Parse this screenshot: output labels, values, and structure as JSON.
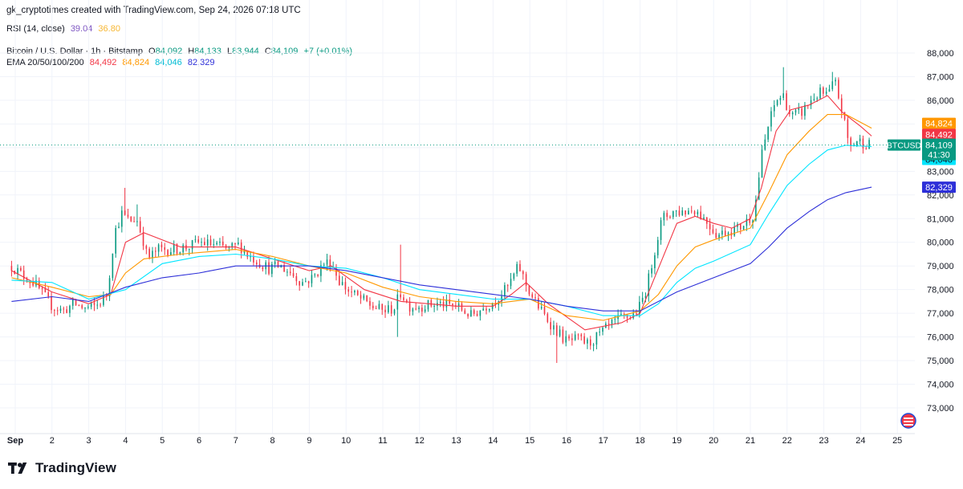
{
  "header": {
    "credit": "gk_cryptotimes created with TradingView.com, Sep 24, 2026 07:18 UTC",
    "rsi": {
      "label": "RSI (14, close)",
      "value1": "39.04",
      "value2": "36.80",
      "color1": "#7e57c2",
      "color2": "#f7b733"
    },
    "symbol": {
      "name": "Bitcoin / U.S. Dollar · 1h · Bitstamp",
      "o_label": "O",
      "o": "84,092",
      "h_label": "H",
      "h": "84,133",
      "l_label": "L",
      "l": "83,944",
      "c_label": "C",
      "c": "84,109",
      "change": "+7 (+0.01%)"
    },
    "ema": {
      "label": "EMA 20/50/100/200",
      "values": [
        "84,492",
        "84,824",
        "84,046",
        "82,329"
      ],
      "colors": [
        "#f23645",
        "#ff9800",
        "#00e5ff",
        "#2d2fd8"
      ]
    }
  },
  "branding": {
    "logo_text": "TradingView",
    "logo_icon": "tradingview-logo-icon"
  },
  "chart_data": {
    "type": "candlestick",
    "interval": "1h",
    "ylim": [
      72400,
      88300
    ],
    "y_ticks": [
      "73,000",
      "74,000",
      "75,000",
      "76,000",
      "77,000",
      "78,000",
      "79,000",
      "80,000",
      "81,000",
      "82,000",
      "83,000",
      "84,000",
      "85,000",
      "86,000",
      "87,000",
      "88,000"
    ],
    "x_ticks": [
      {
        "label": "Sep",
        "day": 1
      },
      {
        "label": "2",
        "day": 2
      },
      {
        "label": "3",
        "day": 3
      },
      {
        "label": "4",
        "day": 4
      },
      {
        "label": "5",
        "day": 5
      },
      {
        "label": "6",
        "day": 6
      },
      {
        "label": "7",
        "day": 7
      },
      {
        "label": "8",
        "day": 8
      },
      {
        "label": "9",
        "day": 9
      },
      {
        "label": "10",
        "day": 10
      },
      {
        "label": "11",
        "day": 11
      },
      {
        "label": "12",
        "day": 12
      },
      {
        "label": "13",
        "day": 13
      },
      {
        "label": "14",
        "day": 14
      },
      {
        "label": "15",
        "day": 15
      },
      {
        "label": "16",
        "day": 16
      },
      {
        "label": "17",
        "day": 17
      },
      {
        "label": "18",
        "day": 18
      },
      {
        "label": "19",
        "day": 19
      },
      {
        "label": "20",
        "day": 20
      },
      {
        "label": "21",
        "day": 21
      },
      {
        "label": "22",
        "day": 22
      },
      {
        "label": "23",
        "day": 23
      },
      {
        "label": "24",
        "day": 24
      },
      {
        "label": "25",
        "day": 25
      }
    ],
    "close_path": [
      [
        0.9,
        79000
      ],
      [
        1.2,
        78600
      ],
      [
        1.5,
        78300
      ],
      [
        1.8,
        77700
      ],
      [
        2.0,
        77300
      ],
      [
        2.3,
        77100
      ],
      [
        2.6,
        77400
      ],
      [
        2.9,
        77200
      ],
      [
        3.2,
        77300
      ],
      [
        3.5,
        77800
      ],
      [
        3.7,
        80400
      ],
      [
        3.9,
        81200
      ],
      [
        4.1,
        80900
      ],
      [
        4.3,
        81000
      ],
      [
        4.5,
        80000
      ],
      [
        4.6,
        79300
      ],
      [
        4.9,
        79700
      ],
      [
        5.3,
        79700
      ],
      [
        5.7,
        79800
      ],
      [
        6.0,
        80000
      ],
      [
        6.4,
        79900
      ],
      [
        6.8,
        79700
      ],
      [
        7.1,
        79900
      ],
      [
        7.3,
        79500
      ],
      [
        7.6,
        79200
      ],
      [
        7.9,
        78900
      ],
      [
        8.2,
        79000
      ],
      [
        8.5,
        78700
      ],
      [
        8.8,
        78300
      ],
      [
        9.1,
        78500
      ],
      [
        9.4,
        79100
      ],
      [
        9.6,
        79200
      ],
      [
        9.8,
        78400
      ],
      [
        10.1,
        77900
      ],
      [
        10.4,
        77600
      ],
      [
        10.7,
        77300
      ],
      [
        11.0,
        77100
      ],
      [
        11.3,
        77200
      ],
      [
        11.5,
        77900
      ],
      [
        11.7,
        77300
      ],
      [
        12.0,
        77300
      ],
      [
        12.5,
        77400
      ],
      [
        13.0,
        77300
      ],
      [
        13.4,
        76900
      ],
      [
        13.8,
        77300
      ],
      [
        14.1,
        77600
      ],
      [
        14.4,
        78100
      ],
      [
        14.7,
        79000
      ],
      [
        14.9,
        78200
      ],
      [
        15.1,
        77600
      ],
      [
        15.4,
        76900
      ],
      [
        15.7,
        76300
      ],
      [
        16.0,
        75800
      ],
      [
        16.3,
        75900
      ],
      [
        16.6,
        75700
      ],
      [
        16.9,
        76100
      ],
      [
        17.2,
        76500
      ],
      [
        17.5,
        76800
      ],
      [
        17.8,
        76900
      ],
      [
        18.0,
        77300
      ],
      [
        18.2,
        78200
      ],
      [
        18.4,
        79700
      ],
      [
        18.6,
        81000
      ],
      [
        18.9,
        81300
      ],
      [
        19.2,
        81300
      ],
      [
        19.5,
        81400
      ],
      [
        19.8,
        80900
      ],
      [
        20.1,
        80300
      ],
      [
        20.4,
        80500
      ],
      [
        20.7,
        80600
      ],
      [
        20.9,
        80900
      ],
      [
        21.1,
        81200
      ],
      [
        21.3,
        83600
      ],
      [
        21.5,
        85000
      ],
      [
        21.7,
        86000
      ],
      [
        21.9,
        86200
      ],
      [
        22.1,
        85300
      ],
      [
        22.4,
        85500
      ],
      [
        22.7,
        86100
      ],
      [
        22.9,
        86300
      ],
      [
        23.1,
        86200
      ],
      [
        23.3,
        86800
      ],
      [
        23.5,
        85500
      ],
      [
        23.7,
        84000
      ],
      [
        23.9,
        84300
      ],
      [
        24.1,
        84200
      ],
      [
        24.3,
        84109
      ]
    ],
    "spikes": [
      {
        "day": 3.95,
        "value": 82300
      },
      {
        "day": 11.45,
        "value": 79900
      },
      {
        "day": 11.4,
        "value": 76000
      },
      {
        "day": 15.75,
        "value": 74900
      },
      {
        "day": 21.9,
        "value": 87400
      },
      {
        "day": 23.2,
        "value": 87200
      },
      {
        "day": 4.3,
        "value": 81600
      }
    ],
    "series": [
      {
        "name": "EMA 20",
        "color": "#f23645",
        "points": [
          [
            0.9,
            78800
          ],
          [
            2.0,
            77900
          ],
          [
            3.0,
            77400
          ],
          [
            3.6,
            77800
          ],
          [
            4.0,
            80000
          ],
          [
            4.5,
            80400
          ],
          [
            5.5,
            79800
          ],
          [
            7.0,
            79800
          ],
          [
            8.0,
            79300
          ],
          [
            9.0,
            78800
          ],
          [
            9.6,
            79000
          ],
          [
            10.5,
            78000
          ],
          [
            11.5,
            77500
          ],
          [
            13.0,
            77300
          ],
          [
            14.0,
            77300
          ],
          [
            14.5,
            77800
          ],
          [
            14.9,
            78300
          ],
          [
            15.5,
            77400
          ],
          [
            16.5,
            76300
          ],
          [
            17.5,
            76600
          ],
          [
            18.0,
            77000
          ],
          [
            18.5,
            78900
          ],
          [
            19.0,
            80800
          ],
          [
            19.5,
            81100
          ],
          [
            20.0,
            80800
          ],
          [
            20.5,
            80600
          ],
          [
            21.0,
            81000
          ],
          [
            21.3,
            82300
          ],
          [
            21.7,
            84700
          ],
          [
            22.1,
            85600
          ],
          [
            22.6,
            85800
          ],
          [
            23.1,
            86200
          ],
          [
            23.5,
            85500
          ],
          [
            24.0,
            84900
          ],
          [
            24.3,
            84492
          ]
        ]
      },
      {
        "name": "EMA 50",
        "color": "#ff9800",
        "points": [
          [
            0.9,
            78500
          ],
          [
            2.0,
            78100
          ],
          [
            3.0,
            77700
          ],
          [
            3.6,
            77800
          ],
          [
            4.0,
            78700
          ],
          [
            4.5,
            79300
          ],
          [
            5.5,
            79500
          ],
          [
            7.0,
            79700
          ],
          [
            8.0,
            79400
          ],
          [
            9.0,
            79000
          ],
          [
            10.0,
            78700
          ],
          [
            11.0,
            78100
          ],
          [
            12.0,
            77700
          ],
          [
            13.0,
            77500
          ],
          [
            14.0,
            77400
          ],
          [
            15.0,
            77600
          ],
          [
            16.0,
            76900
          ],
          [
            17.0,
            76700
          ],
          [
            18.0,
            77100
          ],
          [
            18.5,
            77800
          ],
          [
            19.0,
            79000
          ],
          [
            19.5,
            79800
          ],
          [
            20.0,
            80100
          ],
          [
            21.0,
            80600
          ],
          [
            21.5,
            82100
          ],
          [
            22.0,
            83700
          ],
          [
            22.6,
            84700
          ],
          [
            23.1,
            85400
          ],
          [
            23.6,
            85400
          ],
          [
            24.3,
            84824
          ]
        ]
      },
      {
        "name": "EMA 100",
        "color": "#00e5ff",
        "points": [
          [
            0.9,
            78400
          ],
          [
            2.0,
            78300
          ],
          [
            3.0,
            77600
          ],
          [
            4.0,
            78000
          ],
          [
            5.0,
            79100
          ],
          [
            6.0,
            79400
          ],
          [
            7.0,
            79500
          ],
          [
            8.0,
            79300
          ],
          [
            9.0,
            79000
          ],
          [
            10.0,
            78900
          ],
          [
            11.0,
            78500
          ],
          [
            12.0,
            78000
          ],
          [
            13.0,
            77800
          ],
          [
            14.0,
            77600
          ],
          [
            15.0,
            77600
          ],
          [
            16.0,
            77300
          ],
          [
            17.0,
            76900
          ],
          [
            18.0,
            76900
          ],
          [
            18.5,
            77400
          ],
          [
            19.0,
            78300
          ],
          [
            19.5,
            78900
          ],
          [
            20.0,
            79200
          ],
          [
            21.0,
            79900
          ],
          [
            21.5,
            81200
          ],
          [
            22.0,
            82400
          ],
          [
            22.6,
            83300
          ],
          [
            23.1,
            83900
          ],
          [
            23.6,
            84100
          ],
          [
            24.3,
            84046
          ]
        ]
      },
      {
        "name": "EMA 200",
        "color": "#2d2fd8",
        "points": [
          [
            0.9,
            77500
          ],
          [
            2.0,
            77700
          ],
          [
            3.0,
            77500
          ],
          [
            4.0,
            78100
          ],
          [
            5.0,
            78500
          ],
          [
            6.0,
            78700
          ],
          [
            7.0,
            79000
          ],
          [
            8.0,
            79000
          ],
          [
            9.0,
            79000
          ],
          [
            10.0,
            78800
          ],
          [
            11.0,
            78500
          ],
          [
            12.0,
            78200
          ],
          [
            13.0,
            78000
          ],
          [
            14.0,
            77800
          ],
          [
            15.0,
            77600
          ],
          [
            16.0,
            77300
          ],
          [
            17.0,
            77100
          ],
          [
            18.0,
            77100
          ],
          [
            19.0,
            77900
          ],
          [
            20.0,
            78500
          ],
          [
            21.0,
            79100
          ],
          [
            21.5,
            79800
          ],
          [
            22.0,
            80600
          ],
          [
            22.6,
            81300
          ],
          [
            23.1,
            81800
          ],
          [
            23.6,
            82100
          ],
          [
            24.3,
            82329
          ]
        ]
      }
    ],
    "last_price": {
      "value": 84109,
      "label": "84,109",
      "countdown": "41:30",
      "ticker": "BTCUSD",
      "color": "#089981"
    },
    "value_tags": [
      {
        "value": 84824,
        "label": "84,824",
        "color": "#ff9800",
        "text_color": "#ffffff"
      },
      {
        "value": 84492,
        "label": "84,492",
        "color": "#f23645",
        "text_color": "#ffffff"
      },
      {
        "value": 84046,
        "label": "84,046",
        "color": "#00e5ff",
        "text_color": "#131722"
      },
      {
        "value": 82329,
        "label": "82,329",
        "color": "#2d2fd8",
        "text_color": "#ffffff"
      }
    ],
    "up_color": "#089981",
    "down_color": "#f23645",
    "grid": true
  }
}
